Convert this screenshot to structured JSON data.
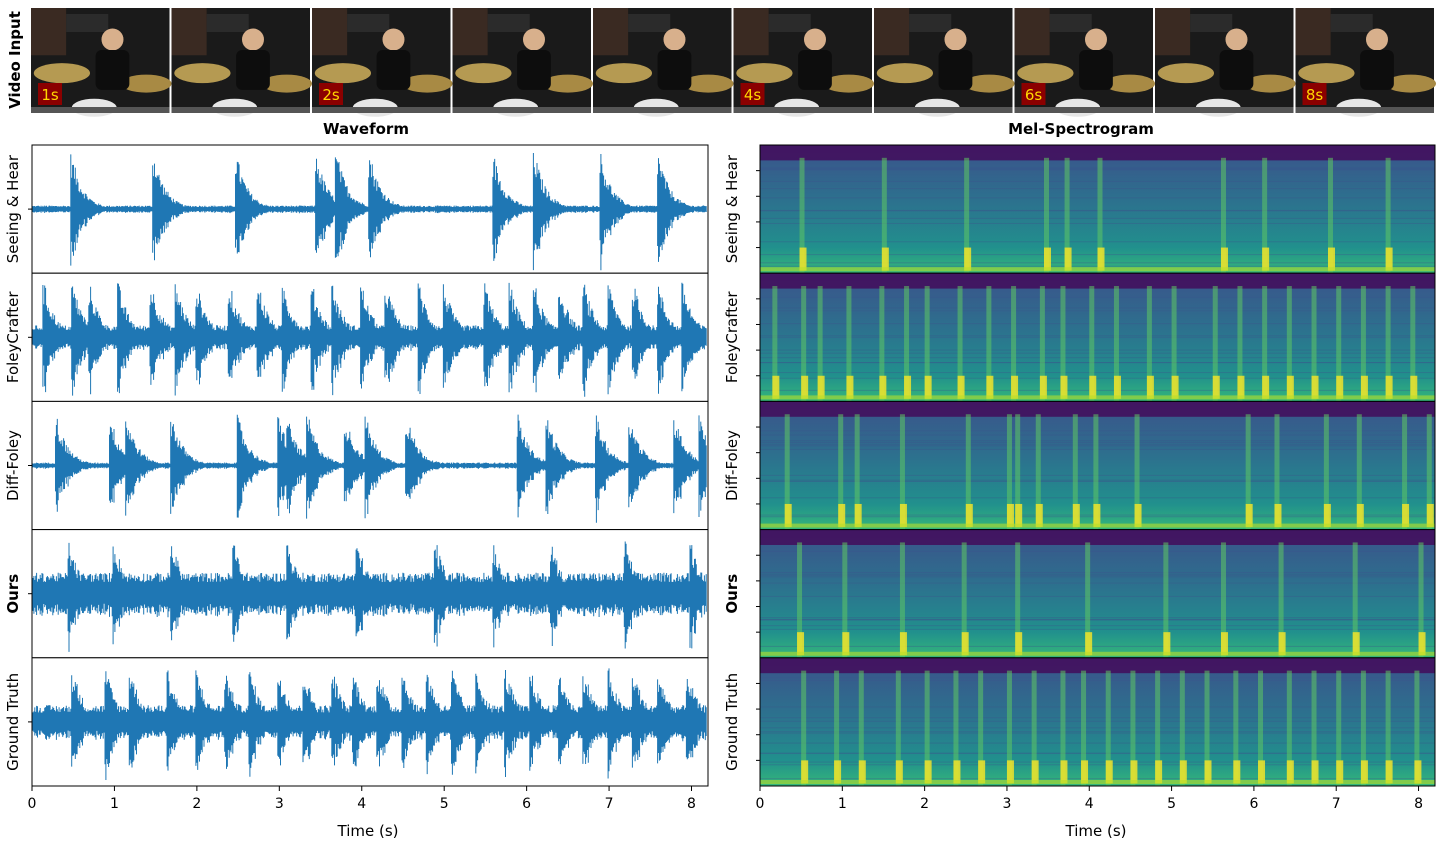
{
  "video": {
    "row_label": "Video Input",
    "frames": 10,
    "time_badges": [
      {
        "frame": 0,
        "label": "1s"
      },
      {
        "frame": 2,
        "label": "2s"
      },
      {
        "frame": 5,
        "label": "4s"
      },
      {
        "frame": 7,
        "label": "6s"
      },
      {
        "frame": 9,
        "label": "8s"
      }
    ],
    "badge_color": "#8b0000",
    "badge_text_color": "#ffd700"
  },
  "methods": [
    "Seeing & Hear",
    "FoleyCrafter",
    "Diff-Foley",
    "Ours",
    "Ground Truth"
  ],
  "bold_methods": [
    "Ours"
  ],
  "colors": {
    "waveform": "#1f77b4",
    "viridis_dark": "#440154",
    "viridis_mid": "#21908d",
    "viridis_bright": "#fde725"
  },
  "chart_data": [
    {
      "type": "line",
      "title": "Waveform",
      "xlabel": "Time (s)",
      "ylabel": "",
      "xlim": [
        0,
        8.2
      ],
      "xticks": [
        "0",
        "1",
        "2",
        "3",
        "4",
        "5",
        "6",
        "7",
        "8"
      ],
      "series": [
        {
          "name": "Seeing & Hear",
          "baseline": 0.06,
          "onsets": [
            0.48,
            1.48,
            2.48,
            3.45,
            3.7,
            4.1,
            5.6,
            6.1,
            6.9,
            7.6
          ],
          "peak": 0.95
        },
        {
          "name": "FoleyCrafter",
          "baseline": 0.2,
          "onsets": [
            0.15,
            0.5,
            0.7,
            1.05,
            1.45,
            1.75,
            2.0,
            2.4,
            2.75,
            3.05,
            3.4,
            3.65,
            4.0,
            4.3,
            4.7,
            5.0,
            5.5,
            5.8,
            6.1,
            6.4,
            6.7,
            7.0,
            7.3,
            7.6,
            7.9
          ],
          "peak": 0.92
        },
        {
          "name": "Diff-Foley",
          "baseline": 0.05,
          "onsets": [
            0.3,
            0.95,
            1.15,
            1.7,
            2.5,
            3.0,
            3.1,
            3.35,
            3.8,
            4.05,
            4.55,
            5.9,
            6.25,
            6.85,
            7.25,
            7.8,
            8.1
          ],
          "peak": 0.85
        },
        {
          "name": "Ours",
          "baseline": 0.35,
          "onsets": [
            0.45,
            1.0,
            1.7,
            2.45,
            3.1,
            3.95,
            4.9,
            5.6,
            6.3,
            7.2,
            8.0
          ],
          "peak": 0.9
        },
        {
          "name": "Ground Truth",
          "baseline": 0.28,
          "onsets": [
            0.5,
            0.9,
            1.2,
            1.65,
            2.0,
            2.35,
            2.65,
            3.0,
            3.3,
            3.65,
            3.9,
            4.2,
            4.5,
            4.8,
            5.1,
            5.4,
            5.75,
            6.05,
            6.4,
            6.7,
            7.0,
            7.3,
            7.6,
            7.95
          ],
          "peak": 0.9
        }
      ]
    },
    {
      "type": "heatmap",
      "title": "Mel-Spectrogram",
      "xlabel": "Time (s)",
      "ylabel": "",
      "xlim": [
        0,
        8.2
      ],
      "xticks": [
        "0",
        "1",
        "2",
        "3",
        "4",
        "5",
        "6",
        "7",
        "8"
      ],
      "colormap": "viridis",
      "series": [
        {
          "name": "Seeing & Hear",
          "onsets": [
            0.48,
            1.48,
            2.48,
            3.45,
            3.7,
            4.1,
            5.6,
            6.1,
            6.9,
            7.6
          ]
        },
        {
          "name": "FoleyCrafter",
          "onsets": [
            0.15,
            0.5,
            0.7,
            1.05,
            1.45,
            1.75,
            2.0,
            2.4,
            2.75,
            3.05,
            3.4,
            3.65,
            4.0,
            4.3,
            4.7,
            5.0,
            5.5,
            5.8,
            6.1,
            6.4,
            6.7,
            7.0,
            7.3,
            7.6,
            7.9
          ]
        },
        {
          "name": "Diff-Foley",
          "onsets": [
            0.3,
            0.95,
            1.15,
            1.7,
            2.5,
            3.0,
            3.1,
            3.35,
            3.8,
            4.05,
            4.55,
            5.9,
            6.25,
            6.85,
            7.25,
            7.8,
            8.1
          ]
        },
        {
          "name": "Ours",
          "onsets": [
            0.45,
            1.0,
            1.7,
            2.45,
            3.1,
            3.95,
            4.9,
            5.6,
            6.3,
            7.2,
            8.0
          ]
        },
        {
          "name": "Ground Truth",
          "onsets": [
            0.5,
            0.9,
            1.2,
            1.65,
            2.0,
            2.35,
            2.65,
            3.0,
            3.3,
            3.65,
            3.9,
            4.2,
            4.5,
            4.8,
            5.1,
            5.4,
            5.75,
            6.05,
            6.4,
            6.7,
            7.0,
            7.3,
            7.6,
            7.95
          ]
        }
      ]
    }
  ]
}
